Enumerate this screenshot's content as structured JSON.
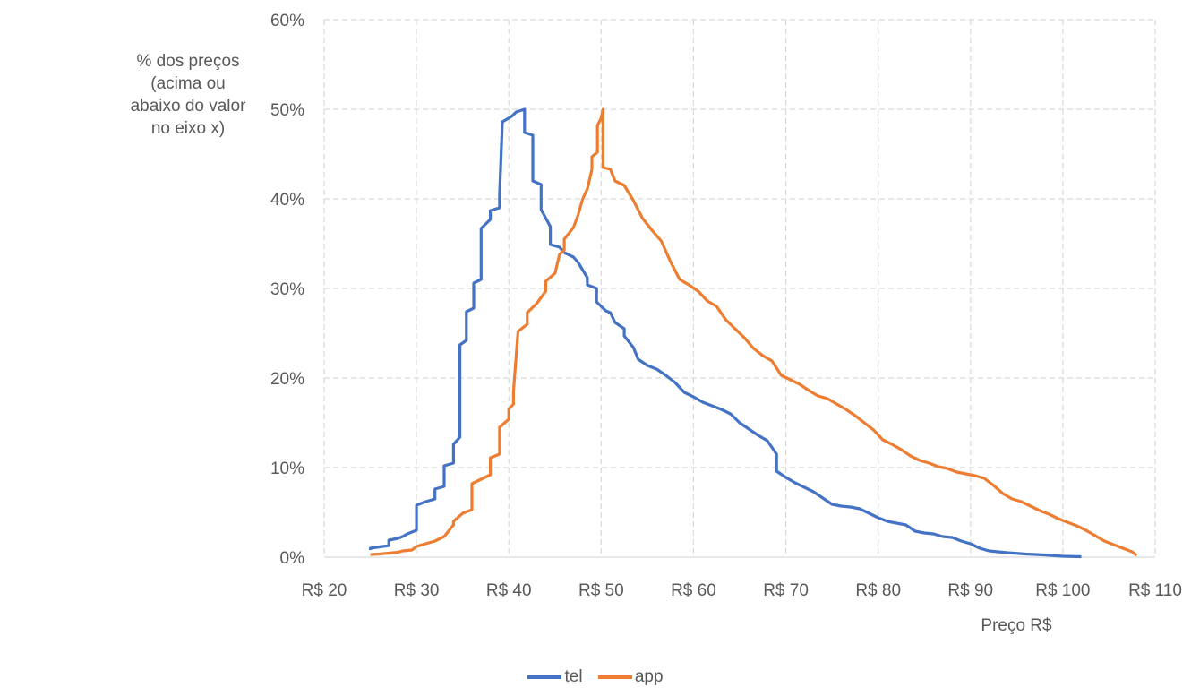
{
  "chart_data": {
    "type": "line",
    "xlabel": "Preço R$",
    "ylabel": "% dos preços (acima ou abaixo do valor no eixo x)",
    "xlim": [
      20,
      110
    ],
    "ylim": [
      0,
      60
    ],
    "x_ticks": [
      20,
      30,
      40,
      50,
      60,
      70,
      80,
      90,
      100,
      110
    ],
    "x_tick_labels": [
      "R$ 20",
      "R$ 30",
      "R$ 40",
      "R$ 50",
      "R$ 60",
      "R$ 70",
      "R$ 80",
      "R$ 90",
      "R$ 100",
      "R$ 110"
    ],
    "y_ticks": [
      0,
      10,
      20,
      30,
      40,
      50,
      60
    ],
    "y_tick_labels": [
      "0%",
      "10%",
      "20%",
      "30%",
      "40%",
      "50%",
      "60%"
    ],
    "grid": true,
    "legend_position": "bottom",
    "series": [
      {
        "name": "tel",
        "color": "#4472C4",
        "points": [
          [
            25,
            0.8
          ],
          [
            25,
            1.0
          ],
          [
            27,
            1.3
          ],
          [
            27,
            1.9
          ],
          [
            28,
            2.1
          ],
          [
            28.5,
            2.3
          ],
          [
            29,
            2.6
          ],
          [
            29.5,
            2.8
          ],
          [
            30,
            3.0
          ],
          [
            30,
            5.8
          ],
          [
            31,
            6.2
          ],
          [
            32,
            6.5
          ],
          [
            32,
            7.6
          ],
          [
            33,
            7.9
          ],
          [
            33,
            10.2
          ],
          [
            34,
            10.5
          ],
          [
            34,
            12.6
          ],
          [
            34.7,
            13.4
          ],
          [
            34.7,
            23.7
          ],
          [
            35.4,
            24.2
          ],
          [
            35.4,
            27.4
          ],
          [
            36.2,
            27.8
          ],
          [
            36.2,
            30.6
          ],
          [
            37,
            31.0
          ],
          [
            37,
            36.7
          ],
          [
            38,
            37.7
          ],
          [
            38,
            38.7
          ],
          [
            39,
            39.0
          ],
          [
            39,
            40.5
          ],
          [
            39.3,
            48.6
          ],
          [
            40.3,
            49.2
          ],
          [
            40.8,
            49.7
          ],
          [
            41.7,
            50.0
          ],
          [
            41.7,
            47.4
          ],
          [
            42.6,
            47.1
          ],
          [
            42.6,
            42.0
          ],
          [
            43.5,
            41.6
          ],
          [
            43.5,
            38.8
          ],
          [
            44.5,
            36.9
          ],
          [
            44.5,
            34.9
          ],
          [
            45.5,
            34.6
          ],
          [
            46,
            34.0
          ],
          [
            47,
            33.5
          ],
          [
            47.5,
            32.9
          ],
          [
            48.5,
            31.2
          ],
          [
            48.5,
            30.4
          ],
          [
            49.5,
            30.0
          ],
          [
            49.5,
            28.5
          ],
          [
            50.5,
            27.5
          ],
          [
            51,
            27.3
          ],
          [
            51.5,
            26.2
          ],
          [
            52.5,
            25.5
          ],
          [
            52.5,
            24.7
          ],
          [
            53.5,
            23.4
          ],
          [
            54,
            22.1
          ],
          [
            55,
            21.4
          ],
          [
            56,
            21.0
          ],
          [
            57,
            20.3
          ],
          [
            58,
            19.5
          ],
          [
            59,
            18.4
          ],
          [
            60,
            17.9
          ],
          [
            61,
            17.3
          ],
          [
            62,
            16.9
          ],
          [
            63,
            16.5
          ],
          [
            64,
            16.0
          ],
          [
            65,
            15.0
          ],
          [
            66,
            14.3
          ],
          [
            67,
            13.6
          ],
          [
            68,
            13.0
          ],
          [
            69,
            11.5
          ],
          [
            69,
            9.6
          ],
          [
            70,
            8.9
          ],
          [
            71,
            8.3
          ],
          [
            72,
            7.8
          ],
          [
            73,
            7.3
          ],
          [
            74,
            6.6
          ],
          [
            75,
            5.9
          ],
          [
            76,
            5.7
          ],
          [
            77,
            5.6
          ],
          [
            78,
            5.4
          ],
          [
            79,
            4.9
          ],
          [
            80,
            4.4
          ],
          [
            81,
            4.0
          ],
          [
            82,
            3.8
          ],
          [
            83,
            3.6
          ],
          [
            84,
            2.9
          ],
          [
            85,
            2.7
          ],
          [
            86,
            2.6
          ],
          [
            87,
            2.3
          ],
          [
            88,
            2.2
          ],
          [
            89,
            1.8
          ],
          [
            90,
            1.5
          ],
          [
            91,
            1.0
          ],
          [
            92,
            0.7
          ],
          [
            94,
            0.5
          ],
          [
            96,
            0.35
          ],
          [
            98,
            0.25
          ],
          [
            100,
            0.1
          ],
          [
            102,
            0.05
          ]
        ]
      },
      {
        "name": "app",
        "color": "#ED7D31",
        "points": [
          [
            25,
            0.3
          ],
          [
            26,
            0.35
          ],
          [
            27,
            0.45
          ],
          [
            28,
            0.55
          ],
          [
            28.5,
            0.7
          ],
          [
            29.5,
            0.8
          ],
          [
            30,
            1.2
          ],
          [
            31,
            1.5
          ],
          [
            32,
            1.8
          ],
          [
            33,
            2.3
          ],
          [
            34,
            3.6
          ],
          [
            34,
            4.0
          ],
          [
            35,
            4.9
          ],
          [
            36,
            5.3
          ],
          [
            36,
            8.2
          ],
          [
            37,
            8.7
          ],
          [
            38,
            9.2
          ],
          [
            38,
            11.1
          ],
          [
            39,
            11.5
          ],
          [
            39,
            14.5
          ],
          [
            40,
            15.4
          ],
          [
            40,
            16.5
          ],
          [
            40.5,
            17.1
          ],
          [
            40.5,
            18.5
          ],
          [
            41,
            25.2
          ],
          [
            42,
            26.0
          ],
          [
            42,
            27.3
          ],
          [
            43,
            28.3
          ],
          [
            44,
            29.7
          ],
          [
            44,
            30.8
          ],
          [
            45,
            31.7
          ],
          [
            45.5,
            33.8
          ],
          [
            46,
            34.3
          ],
          [
            46,
            35.5
          ],
          [
            47,
            36.8
          ],
          [
            47.5,
            38.2
          ],
          [
            48,
            40.0
          ],
          [
            48.5,
            41.1
          ],
          [
            49,
            43.3
          ],
          [
            49,
            44.7
          ],
          [
            49.6,
            45.2
          ],
          [
            49.6,
            48.2
          ],
          [
            50,
            49.0
          ],
          [
            50.2,
            50.0
          ],
          [
            50.2,
            43.5
          ],
          [
            51,
            43.3
          ],
          [
            51.5,
            42.0
          ],
          [
            52.5,
            41.5
          ],
          [
            53.5,
            39.8
          ],
          [
            54.5,
            37.8
          ],
          [
            55.5,
            36.5
          ],
          [
            56.5,
            35.3
          ],
          [
            57.5,
            33.0
          ],
          [
            58.5,
            31.0
          ],
          [
            59.5,
            30.4
          ],
          [
            60.5,
            29.7
          ],
          [
            61.5,
            28.6
          ],
          [
            62.5,
            28.0
          ],
          [
            63.5,
            26.5
          ],
          [
            64.5,
            25.5
          ],
          [
            65.5,
            24.5
          ],
          [
            66.5,
            23.3
          ],
          [
            67.5,
            22.5
          ],
          [
            68.5,
            21.9
          ],
          [
            69.5,
            20.3
          ],
          [
            70.5,
            19.8
          ],
          [
            71.5,
            19.3
          ],
          [
            72.5,
            18.6
          ],
          [
            73.5,
            18.0
          ],
          [
            74.5,
            17.7
          ],
          [
            75.5,
            17.1
          ],
          [
            76.5,
            16.5
          ],
          [
            77.5,
            15.8
          ],
          [
            78.5,
            15.0
          ],
          [
            79.5,
            14.2
          ],
          [
            80.5,
            13.1
          ],
          [
            81.5,
            12.6
          ],
          [
            82.5,
            12.0
          ],
          [
            83.5,
            11.3
          ],
          [
            84.5,
            10.8
          ],
          [
            85.5,
            10.5
          ],
          [
            86.5,
            10.1
          ],
          [
            87.5,
            9.9
          ],
          [
            88.5,
            9.5
          ],
          [
            89.5,
            9.3
          ],
          [
            90.5,
            9.1
          ],
          [
            91.5,
            8.8
          ],
          [
            92.5,
            8.0
          ],
          [
            93.5,
            7.1
          ],
          [
            94.5,
            6.5
          ],
          [
            95.5,
            6.2
          ],
          [
            96.5,
            5.7
          ],
          [
            97.5,
            5.2
          ],
          [
            98.5,
            4.8
          ],
          [
            99.5,
            4.3
          ],
          [
            100.5,
            3.9
          ],
          [
            101.5,
            3.5
          ],
          [
            102.5,
            3.0
          ],
          [
            103.5,
            2.4
          ],
          [
            104.5,
            1.8
          ],
          [
            105.5,
            1.4
          ],
          [
            106.5,
            1.0
          ],
          [
            107.5,
            0.6
          ],
          [
            108,
            0.2
          ]
        ]
      }
    ]
  }
}
